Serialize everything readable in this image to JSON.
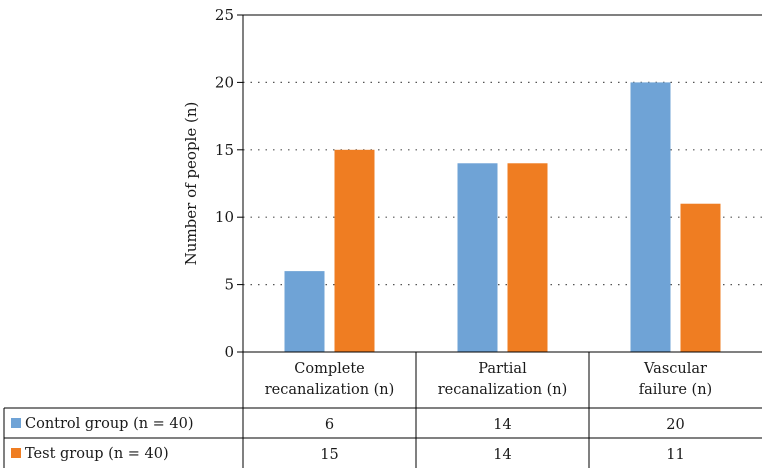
{
  "chart_data": {
    "type": "bar",
    "title": "",
    "xlabel": "",
    "ylabel": "Number of people (n)",
    "ylim": [
      0,
      25
    ],
    "yticks": [
      0,
      5,
      10,
      15,
      20,
      25
    ],
    "grid": "horizontal dotted",
    "legend_placement": "data table rows below chart",
    "categories": [
      [
        "Complete",
        "recanalization (n)"
      ],
      [
        "Partial",
        "recanalization (n)"
      ],
      [
        "Vascular",
        "failure (n)"
      ]
    ],
    "series": [
      {
        "name": "Control group (n = 40)",
        "color": "#6fa3d6",
        "values": [
          6,
          14,
          20
        ]
      },
      {
        "name": "Test group (n = 40)",
        "color": "#ef7d22",
        "values": [
          15,
          14,
          11
        ]
      }
    ]
  }
}
